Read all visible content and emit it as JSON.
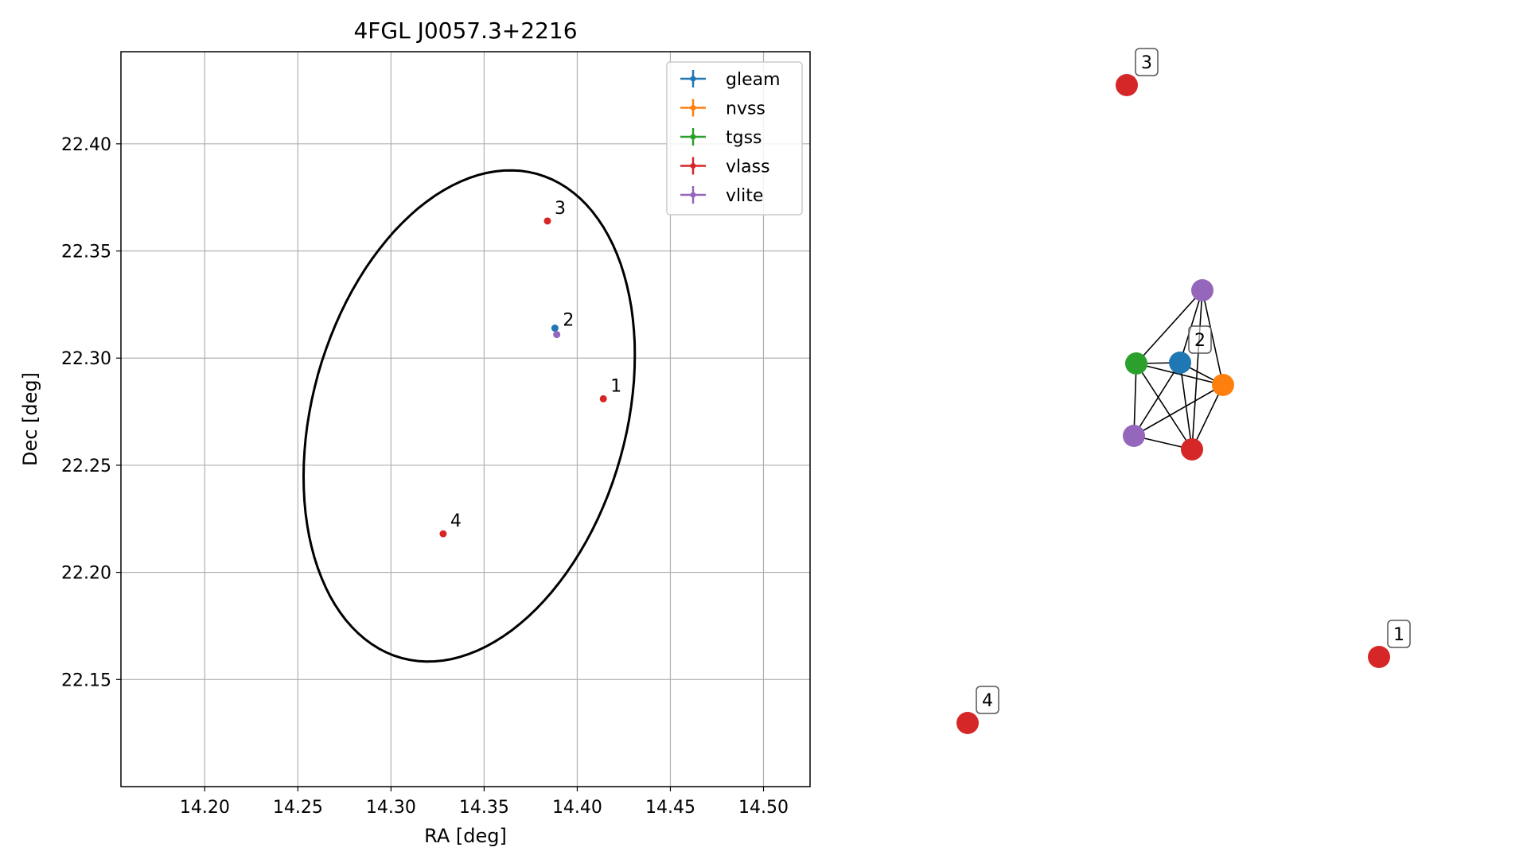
{
  "chart_data": [
    {
      "type": "scatter",
      "title": "4FGL J0057.3+2216",
      "xlabel": "RA [deg]",
      "ylabel": "Dec [deg]",
      "xlim": [
        14.155,
        14.525
      ],
      "ylim": [
        22.1,
        22.443
      ],
      "xticks": [
        "14.20",
        "14.25",
        "14.30",
        "14.35",
        "14.40",
        "14.45",
        "14.50"
      ],
      "yticks": [
        "22.15",
        "22.20",
        "22.25",
        "22.30",
        "22.35",
        "22.40"
      ],
      "grid": true,
      "legend": {
        "placement": "top-right",
        "entries": [
          {
            "name": "gleam",
            "color": "#1f77b4"
          },
          {
            "name": "nvss",
            "color": "#ff7f0e"
          },
          {
            "name": "tgss",
            "color": "#2ca02c"
          },
          {
            "name": "vlass",
            "color": "#d62728"
          },
          {
            "name": "vlite",
            "color": "#9467bd"
          }
        ]
      },
      "ellipse": {
        "center": [
          14.342,
          22.273
        ],
        "semi_major_deg": 0.119,
        "semi_minor_deg": 0.083,
        "orientation_deg": 68,
        "color": "#000000"
      },
      "points": [
        {
          "survey": "gleam",
          "ra": 14.388,
          "dec": 22.314,
          "color": "#1f77b4"
        },
        {
          "survey": "vlite",
          "ra": 14.389,
          "dec": 22.311,
          "color": "#9467bd"
        },
        {
          "survey": "vlass",
          "ra": 14.384,
          "dec": 22.364,
          "color": "#d62728",
          "label": "3"
        },
        {
          "survey": "vlass",
          "ra": 14.414,
          "dec": 22.281,
          "color": "#d62728",
          "label": "1"
        },
        {
          "survey": "vlass",
          "ra": 14.328,
          "dec": 22.218,
          "color": "#d62728",
          "label": "4"
        }
      ],
      "cluster_label": {
        "text": "2",
        "ra": 14.388,
        "dec": 22.314
      }
    },
    {
      "type": "graph",
      "nodes": [
        {
          "id": "v3",
          "color": "#d62728",
          "label": "3"
        },
        {
          "id": "vlite_a",
          "color": "#9467bd"
        },
        {
          "id": "tgss",
          "color": "#2ca02c"
        },
        {
          "id": "gleam",
          "color": "#1f77b4",
          "label": "2"
        },
        {
          "id": "nvss",
          "color": "#ff7f0e"
        },
        {
          "id": "vlite_b",
          "color": "#9467bd"
        },
        {
          "id": "vlass2",
          "color": "#d62728"
        },
        {
          "id": "v4",
          "color": "#d62728",
          "label": "4"
        },
        {
          "id": "v1",
          "color": "#d62728",
          "label": "1"
        }
      ],
      "edges": [
        [
          "vlite_a",
          "tgss"
        ],
        [
          "vlite_a",
          "vlass2"
        ],
        [
          "vlite_a",
          "nvss"
        ],
        [
          "vlite_a",
          "gleam"
        ],
        [
          "tgss",
          "gleam"
        ],
        [
          "tgss",
          "nvss"
        ],
        [
          "tgss",
          "vlite_b"
        ],
        [
          "tgss",
          "vlass2"
        ],
        [
          "gleam",
          "nvss"
        ],
        [
          "gleam",
          "vlite_b"
        ],
        [
          "gleam",
          "vlass2"
        ],
        [
          "nvss",
          "vlite_b"
        ],
        [
          "nvss",
          "vlass2"
        ],
        [
          "vlite_b",
          "vlass2"
        ]
      ]
    }
  ]
}
